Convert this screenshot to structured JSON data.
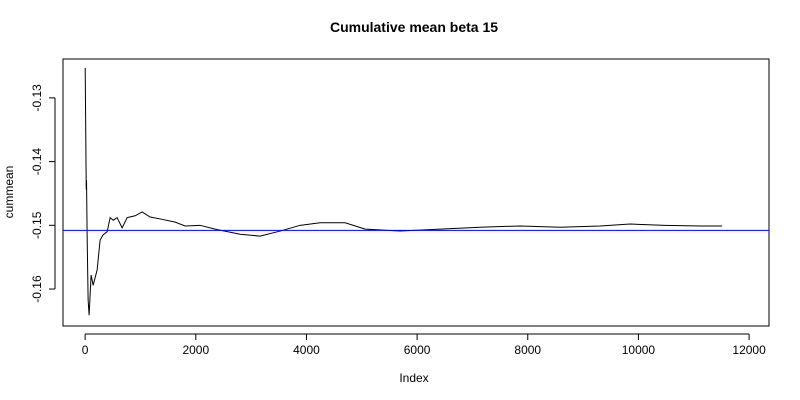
{
  "chart_data": {
    "type": "line",
    "title": "Cumulative mean beta 15",
    "x_label": "Index",
    "y_label": "cummean",
    "x": [
      1,
      20,
      25,
      36,
      54,
      72,
      108,
      145,
      217,
      271,
      325,
      398,
      452,
      506,
      578,
      669,
      759,
      904,
      1030,
      1175,
      1356,
      1627,
      1807,
      2078,
      2349,
      2801,
      3163,
      3524,
      3886,
      4247,
      4699,
      5061,
      5693,
      6416,
      7139,
      7862,
      8585,
      9308,
      9850,
      10483,
      11115,
      11513
    ],
    "series": [
      {
        "name": "cummean",
        "color": "#000000",
        "values": [
          -0.1253,
          -0.1444,
          -0.1429,
          -0.1515,
          -0.1617,
          -0.1641,
          -0.1578,
          -0.1594,
          -0.157,
          -0.1523,
          -0.1515,
          -0.151,
          -0.1488,
          -0.1492,
          -0.1488,
          -0.1504,
          -0.1488,
          -0.1485,
          -0.1479,
          -0.1487,
          -0.149,
          -0.1495,
          -0.1501,
          -0.15,
          -0.1506,
          -0.1514,
          -0.1517,
          -0.1509,
          -0.15,
          -0.1496,
          -0.1496,
          -0.1506,
          -0.1509,
          -0.1506,
          -0.1503,
          -0.1501,
          -0.1503,
          -0.1501,
          -0.1498,
          -0.15,
          -0.1501,
          -0.1501
        ]
      }
    ],
    "hline": {
      "value": -0.1508,
      "color": "#0000ff"
    },
    "xlim": [
      -400,
      12360
    ],
    "ylim": [
      -0.1658,
      -0.1239
    ],
    "xticks": [
      0,
      2000,
      4000,
      6000,
      8000,
      10000,
      12000
    ],
    "yticks": [
      -0.16,
      -0.15,
      -0.14,
      -0.13
    ]
  }
}
